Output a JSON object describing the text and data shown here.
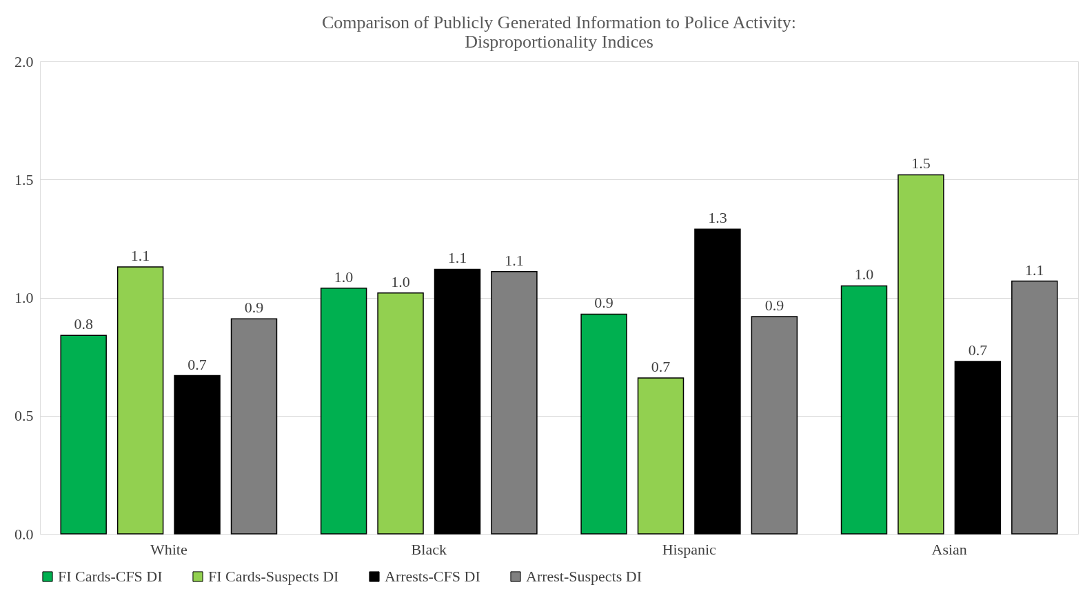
{
  "chart_data": {
    "type": "bar",
    "title": "Comparison of Publicly Generated Information to Police Activity:\nDisproportionality Indices",
    "categories": [
      "White",
      "Black",
      "Hispanic",
      "Asian"
    ],
    "series": [
      {
        "name": "FI Cards-CFS DI",
        "color": "#00b050",
        "values": [
          0.84,
          1.04,
          0.93,
          1.05
        ],
        "value_labels": [
          "0.8",
          "1.0",
          "0.9",
          "1.0"
        ]
      },
      {
        "name": "FI Cards-Suspects DI",
        "color": "#92d050",
        "values": [
          1.13,
          1.02,
          0.66,
          1.52
        ],
        "value_labels": [
          "1.1",
          "1.0",
          "0.7",
          "1.5"
        ]
      },
      {
        "name": "Arrests-CFS DI",
        "color": "#000000",
        "values": [
          0.67,
          1.12,
          1.29,
          0.73
        ],
        "value_labels": [
          "0.7",
          "1.1",
          "1.3",
          "0.7"
        ]
      },
      {
        "name": "Arrest-Suspects DI",
        "color": "#808080",
        "values": [
          0.91,
          1.11,
          0.92,
          1.07
        ],
        "value_labels": [
          "0.9",
          "1.1",
          "0.9",
          "1.1"
        ]
      }
    ],
    "ylim": [
      0,
      2
    ],
    "yticks": [
      {
        "value": 0,
        "label": "0.0"
      },
      {
        "value": 0.5,
        "label": "0.5"
      },
      {
        "value": 1,
        "label": "1.0"
      },
      {
        "value": 1.5,
        "label": "1.5"
      },
      {
        "value": 2,
        "label": "2.0"
      }
    ],
    "grid": "y",
    "legend": "bottom"
  }
}
